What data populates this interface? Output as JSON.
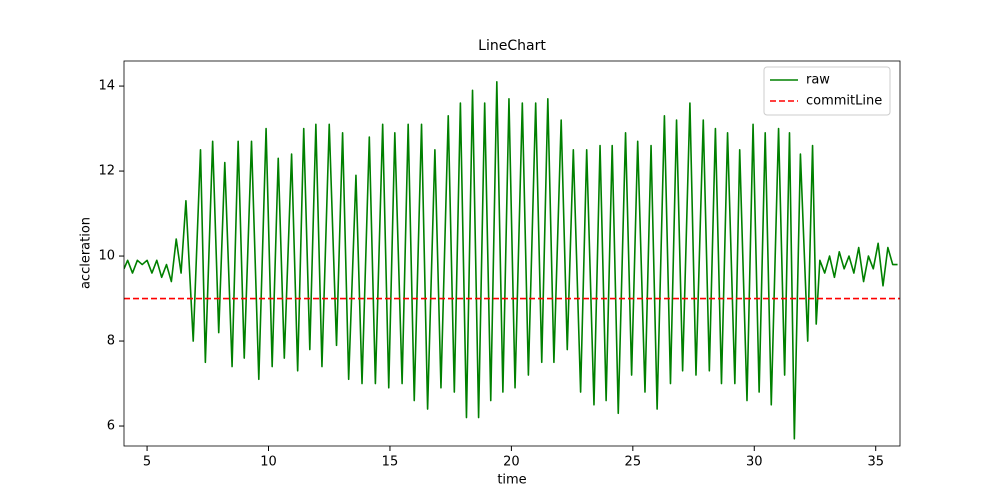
{
  "chart_data": {
    "type": "line",
    "title": "LineChart",
    "xlabel": "time",
    "ylabel": "accleration",
    "xlim": [
      4.05,
      36
    ],
    "ylim": [
      5.53,
      14.59
    ],
    "xticks": [
      5,
      10,
      15,
      20,
      25,
      30,
      35
    ],
    "yticks": [
      6,
      8,
      10,
      12,
      14
    ],
    "legend": "upper right",
    "grid": false,
    "series": [
      {
        "name": "raw",
        "color": "#008000",
        "linestyle": "solid",
        "x": [
          4.05,
          4.2,
          4.4,
          4.6,
          4.8,
          5.0,
          5.2,
          5.4,
          5.6,
          5.8,
          6.0,
          6.2,
          6.4,
          6.6,
          6.9,
          7.2,
          7.4,
          7.7,
          7.95,
          8.2,
          8.5,
          8.75,
          9.0,
          9.3,
          9.6,
          9.9,
          10.15,
          10.4,
          10.65,
          10.95,
          11.2,
          11.45,
          11.7,
          11.95,
          12.2,
          12.5,
          12.8,
          13.05,
          13.3,
          13.6,
          13.85,
          14.15,
          14.4,
          14.7,
          14.95,
          15.2,
          15.5,
          15.75,
          16.0,
          16.3,
          16.55,
          16.85,
          17.1,
          17.4,
          17.65,
          17.9,
          18.15,
          18.4,
          18.65,
          18.9,
          19.15,
          19.4,
          19.65,
          19.9,
          20.15,
          20.45,
          20.7,
          21.0,
          21.25,
          21.5,
          21.75,
          22.05,
          22.3,
          22.55,
          22.85,
          23.1,
          23.4,
          23.65,
          23.9,
          24.15,
          24.4,
          24.7,
          24.95,
          25.2,
          25.5,
          25.75,
          26.0,
          26.3,
          26.55,
          26.8,
          27.05,
          27.35,
          27.6,
          27.9,
          28.15,
          28.4,
          28.65,
          28.9,
          29.2,
          29.4,
          29.7,
          29.95,
          30.2,
          30.45,
          30.7,
          31.0,
          31.25,
          31.45,
          31.65,
          31.9,
          32.2,
          32.4,
          32.55,
          32.7,
          32.9,
          33.1,
          33.3,
          33.5,
          33.7,
          33.9,
          34.1,
          34.3,
          34.5,
          34.7,
          34.9,
          35.1,
          35.3,
          35.5,
          35.7,
          35.9
        ],
        "values": [
          9.7,
          9.9,
          9.6,
          9.9,
          9.8,
          9.9,
          9.6,
          9.9,
          9.5,
          9.8,
          9.4,
          10.4,
          9.6,
          11.3,
          8.0,
          12.5,
          7.5,
          12.7,
          8.2,
          12.2,
          7.4,
          12.7,
          7.6,
          12.7,
          7.1,
          13.0,
          7.4,
          12.3,
          7.6,
          12.4,
          7.3,
          13.0,
          7.8,
          13.1,
          7.4,
          13.1,
          7.9,
          12.9,
          7.1,
          11.9,
          7.0,
          12.8,
          7.0,
          13.1,
          6.9,
          12.9,
          7.0,
          13.1,
          6.6,
          13.1,
          6.4,
          12.5,
          6.9,
          13.3,
          6.8,
          13.6,
          6.2,
          13.9,
          6.2,
          13.6,
          6.6,
          14.1,
          6.8,
          13.7,
          6.9,
          13.6,
          7.2,
          13.6,
          7.5,
          13.7,
          7.5,
          13.2,
          7.8,
          12.5,
          6.8,
          12.5,
          6.5,
          12.6,
          6.6,
          12.6,
          6.3,
          12.9,
          7.2,
          12.7,
          6.8,
          12.6,
          6.4,
          13.3,
          7.0,
          13.2,
          7.3,
          13.6,
          7.2,
          13.2,
          7.3,
          13.0,
          7.0,
          12.9,
          7.0,
          12.5,
          6.6,
          13.1,
          6.8,
          12.9,
          6.5,
          13.0,
          7.2,
          12.9,
          5.7,
          12.4,
          8.0,
          12.6,
          8.4,
          9.9,
          9.6,
          10.0,
          9.5,
          10.1,
          9.7,
          10.0,
          9.6,
          10.2,
          9.4,
          10.0,
          9.7,
          10.3,
          9.3,
          10.2,
          9.8,
          9.8
        ]
      },
      {
        "name": "commitLine",
        "color": "#ff0000",
        "linestyle": "dashed",
        "x": [
          4.05,
          36
        ],
        "values": [
          9,
          9
        ]
      }
    ]
  }
}
